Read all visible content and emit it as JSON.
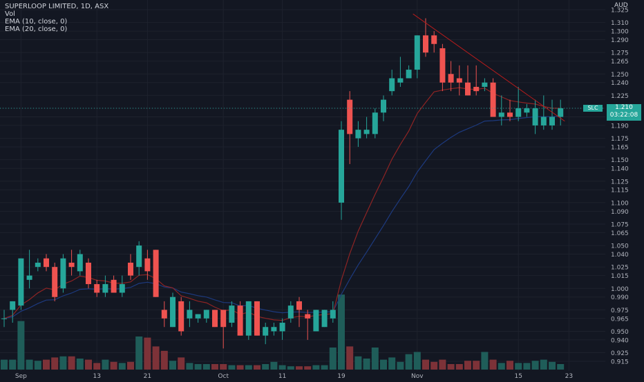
{
  "header": {
    "title": "SUPERLOOP LIMITED, 1D, ASX",
    "legend": [
      "Vol",
      "EMA (10, close, 0)",
      "EMA (20, close, 0)"
    ]
  },
  "currency": "AUD",
  "last": {
    "symbol": "SLC",
    "price": "1.210",
    "countdown": "03:22:08"
  },
  "colors": {
    "background": "#131722",
    "up": "#26a69a",
    "down": "#ef5350",
    "up_volume": "#1f5d59",
    "down_volume": "#7d3238",
    "ema10": "#8e2424",
    "ema20": "#1d3a7f",
    "trendline": "#b71c1c",
    "grid": "#1e222d"
  },
  "chart_data": {
    "type": "candlestick",
    "title": "SUPERLOOP LIMITED, 1D, ASX",
    "xlabel": "",
    "ylabel": "",
    "ylim": [
      0.905,
      1.33
    ],
    "grid": true,
    "y_ticks": [
      "1.325",
      "1.310",
      "1.300",
      "1.290",
      "1.275",
      "1.265",
      "1.250",
      "1.240",
      "1.225",
      "1.210",
      "1.200",
      "1.190",
      "1.175",
      "1.165",
      "1.150",
      "1.140",
      "1.125",
      "1.115",
      "1.100",
      "1.090",
      "1.075",
      "1.065",
      "1.050",
      "1.040",
      "1.025",
      "1.015",
      "1.000",
      "0.990",
      "0.975",
      "0.965",
      "0.950",
      "0.940",
      "0.925",
      "0.915"
    ],
    "x_ticks": [
      {
        "label": "Sep",
        "index": 2
      },
      {
        "label": "13",
        "index": 11
      },
      {
        "label": "21",
        "index": 17
      },
      {
        "label": "Oct",
        "index": 26
      },
      {
        "label": "11",
        "index": 33
      },
      {
        "label": "19",
        "index": 40
      },
      {
        "label": "Nov",
        "index": 49
      },
      {
        "label": "15",
        "index": 61
      },
      {
        "label": "23",
        "index": 67
      }
    ],
    "candles": [
      {
        "o": 0.965,
        "h": 0.975,
        "l": 0.955,
        "c": 0.965
      },
      {
        "o": 0.975,
        "h": 0.985,
        "l": 0.96,
        "c": 0.985
      },
      {
        "o": 0.98,
        "h": 1.035,
        "l": 0.975,
        "c": 1.035
      },
      {
        "o": 1.01,
        "h": 1.045,
        "l": 1.0,
        "c": 1.015
      },
      {
        "o": 1.025,
        "h": 1.035,
        "l": 1.02,
        "c": 1.03
      },
      {
        "o": 1.035,
        "h": 1.04,
        "l": 1.02,
        "c": 1.025
      },
      {
        "o": 1.025,
        "h": 1.03,
        "l": 0.985,
        "c": 0.99
      },
      {
        "o": 1.0,
        "h": 1.04,
        "l": 0.995,
        "c": 1.035
      },
      {
        "o": 1.03,
        "h": 1.045,
        "l": 1.015,
        "c": 1.025
      },
      {
        "o": 1.02,
        "h": 1.045,
        "l": 1.015,
        "c": 1.04
      },
      {
        "o": 1.03,
        "h": 1.035,
        "l": 1.0,
        "c": 1.005
      },
      {
        "o": 1.005,
        "h": 1.01,
        "l": 0.99,
        "c": 0.995
      },
      {
        "o": 0.995,
        "h": 1.015,
        "l": 0.99,
        "c": 1.005
      },
      {
        "o": 1.01,
        "h": 1.015,
        "l": 0.995,
        "c": 0.995
      },
      {
        "o": 0.995,
        "h": 1.015,
        "l": 0.99,
        "c": 1.005
      },
      {
        "o": 1.03,
        "h": 1.04,
        "l": 1.01,
        "c": 1.015
      },
      {
        "o": 1.025,
        "h": 1.055,
        "l": 1.015,
        "c": 1.05
      },
      {
        "o": 1.035,
        "h": 1.045,
        "l": 1.01,
        "c": 1.02
      },
      {
        "o": 1.045,
        "h": 1.045,
        "l": 0.99,
        "c": 0.99
      },
      {
        "o": 0.975,
        "h": 0.985,
        "l": 0.955,
        "c": 0.965
      },
      {
        "o": 0.955,
        "h": 0.995,
        "l": 0.955,
        "c": 0.99
      },
      {
        "o": 0.985,
        "h": 0.99,
        "l": 0.945,
        "c": 0.95
      },
      {
        "o": 0.965,
        "h": 0.985,
        "l": 0.955,
        "c": 0.975
      },
      {
        "o": 0.965,
        "h": 0.97,
        "l": 0.96,
        "c": 0.97
      },
      {
        "o": 0.965,
        "h": 0.975,
        "l": 0.96,
        "c": 0.975
      },
      {
        "o": 0.975,
        "h": 0.975,
        "l": 0.955,
        "c": 0.955
      },
      {
        "o": 0.975,
        "h": 0.975,
        "l": 0.93,
        "c": 0.955
      },
      {
        "o": 0.96,
        "h": 0.985,
        "l": 0.955,
        "c": 0.98
      },
      {
        "o": 0.98,
        "h": 0.985,
        "l": 0.945,
        "c": 0.945
      },
      {
        "o": 0.945,
        "h": 0.985,
        "l": 0.94,
        "c": 0.985
      },
      {
        "o": 0.985,
        "h": 0.985,
        "l": 0.945,
        "c": 0.945
      },
      {
        "o": 0.945,
        "h": 0.96,
        "l": 0.935,
        "c": 0.955
      },
      {
        "o": 0.95,
        "h": 0.96,
        "l": 0.945,
        "c": 0.955
      },
      {
        "o": 0.95,
        "h": 0.965,
        "l": 0.94,
        "c": 0.96
      },
      {
        "o": 0.965,
        "h": 0.985,
        "l": 0.96,
        "c": 0.98
      },
      {
        "o": 0.985,
        "h": 0.99,
        "l": 0.955,
        "c": 0.975
      },
      {
        "o": 0.97,
        "h": 0.975,
        "l": 0.94,
        "c": 0.965
      },
      {
        "o": 0.95,
        "h": 0.975,
        "l": 0.95,
        "c": 0.975
      },
      {
        "o": 0.955,
        "h": 0.975,
        "l": 0.955,
        "c": 0.975
      },
      {
        "o": 0.965,
        "h": 0.985,
        "l": 0.96,
        "c": 0.975
      },
      {
        "o": 1.1,
        "h": 1.195,
        "l": 1.08,
        "c": 1.185
      },
      {
        "o": 1.22,
        "h": 1.23,
        "l": 1.145,
        "c": 1.18
      },
      {
        "o": 1.175,
        "h": 1.195,
        "l": 1.165,
        "c": 1.185
      },
      {
        "o": 1.18,
        "h": 1.2,
        "l": 1.175,
        "c": 1.185
      },
      {
        "o": 1.18,
        "h": 1.21,
        "l": 1.175,
        "c": 1.205
      },
      {
        "o": 1.205,
        "h": 1.225,
        "l": 1.195,
        "c": 1.22
      },
      {
        "o": 1.23,
        "h": 1.255,
        "l": 1.225,
        "c": 1.245
      },
      {
        "o": 1.24,
        "h": 1.27,
        "l": 1.235,
        "c": 1.245
      },
      {
        "o": 1.245,
        "h": 1.26,
        "l": 1.245,
        "c": 1.255
      },
      {
        "o": 1.255,
        "h": 1.295,
        "l": 1.245,
        "c": 1.295
      },
      {
        "o": 1.295,
        "h": 1.315,
        "l": 1.27,
        "c": 1.275
      },
      {
        "o": 1.295,
        "h": 1.3,
        "l": 1.275,
        "c": 1.285
      },
      {
        "o": 1.28,
        "h": 1.285,
        "l": 1.23,
        "c": 1.24
      },
      {
        "o": 1.25,
        "h": 1.265,
        "l": 1.23,
        "c": 1.24
      },
      {
        "o": 1.245,
        "h": 1.26,
        "l": 1.225,
        "c": 1.24
      },
      {
        "o": 1.24,
        "h": 1.26,
        "l": 1.225,
        "c": 1.225
      },
      {
        "o": 1.235,
        "h": 1.26,
        "l": 1.225,
        "c": 1.23
      },
      {
        "o": 1.235,
        "h": 1.245,
        "l": 1.23,
        "c": 1.24
      },
      {
        "o": 1.24,
        "h": 1.245,
        "l": 1.2,
        "c": 1.2
      },
      {
        "o": 1.2,
        "h": 1.225,
        "l": 1.19,
        "c": 1.205
      },
      {
        "o": 1.205,
        "h": 1.22,
        "l": 1.195,
        "c": 1.2
      },
      {
        "o": 1.2,
        "h": 1.235,
        "l": 1.195,
        "c": 1.21
      },
      {
        "o": 1.205,
        "h": 1.215,
        "l": 1.2,
        "c": 1.21
      },
      {
        "o": 1.19,
        "h": 1.22,
        "l": 1.18,
        "c": 1.21
      },
      {
        "o": 1.19,
        "h": 1.225,
        "l": 1.185,
        "c": 1.2
      },
      {
        "o": 1.19,
        "h": 1.22,
        "l": 1.185,
        "c": 1.2
      },
      {
        "o": 1.2,
        "h": 1.22,
        "l": 1.19,
        "c": 1.21
      }
    ],
    "volume": [
      9,
      9,
      44,
      9,
      8,
      9,
      11,
      12,
      12,
      10,
      9,
      6,
      9,
      7,
      6,
      7,
      30,
      29,
      21,
      17,
      8,
      11,
      6,
      5,
      5,
      5,
      5,
      4,
      4,
      4,
      4,
      5,
      7,
      4,
      3,
      3,
      3,
      4,
      4,
      20,
      68,
      21,
      12,
      10,
      20,
      9,
      11,
      7,
      14,
      16,
      9,
      7,
      9,
      5,
      5,
      8,
      8,
      16,
      9,
      6,
      8,
      6,
      6,
      8,
      9,
      7,
      5
    ]
  }
}
